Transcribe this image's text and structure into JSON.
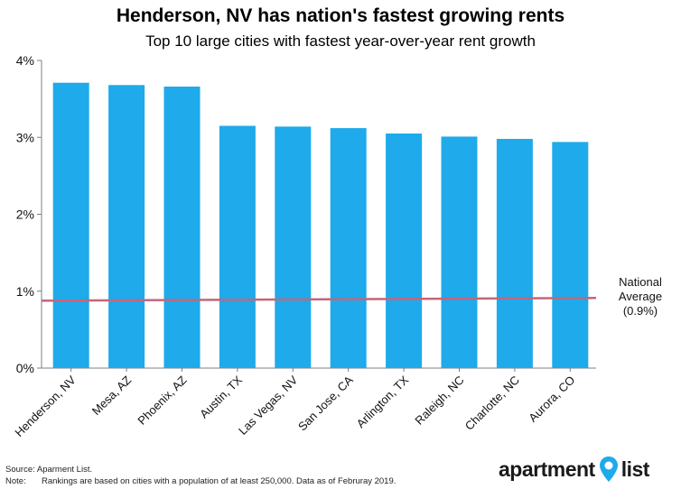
{
  "header": {
    "title": "Henderson, NV has nation's fastest growing rents",
    "subtitle": "Top 10 large cities with fastest year-over-year rent growth"
  },
  "chart_data": {
    "type": "bar",
    "title": "Henderson, NV has nation's fastest growing rents",
    "subtitle": "Top 10 large cities with fastest year-over-year rent growth",
    "categories": [
      "Henderson, NV",
      "Mesa, AZ",
      "Phoenix, AZ",
      "Austin, TX",
      "Las Vegas, NV",
      "San Jose, CA",
      "Arlington, TX",
      "Raleigh, NC",
      "Charlotte, NC",
      "Aurora, CO"
    ],
    "values": [
      3.71,
      3.68,
      3.66,
      3.15,
      3.14,
      3.12,
      3.05,
      3.01,
      2.98,
      2.94
    ],
    "unit": "%",
    "ylim": [
      0,
      4
    ],
    "yticks": [
      "0%",
      "1%",
      "2%",
      "3%",
      "4%"
    ],
    "xlabel": "",
    "ylabel": "",
    "reference_line": {
      "label_lines": [
        "National",
        "Average",
        "(0.9%)"
      ],
      "value": 0.9
    },
    "colors": {
      "bar": "#1eaaeb",
      "reference_line": "#c4667a",
      "axis": "#7f7f7f"
    }
  },
  "footer": {
    "source": "Source: Aparment List.",
    "note_label": "Note:",
    "note_text": "Rankings are based on cities with a population of at least 250,000. Data as of Februray 2019."
  },
  "logo": {
    "word_left": "apartment",
    "word_right": "list",
    "icon": "map-pin-icon",
    "color": "#1eaaeb"
  }
}
